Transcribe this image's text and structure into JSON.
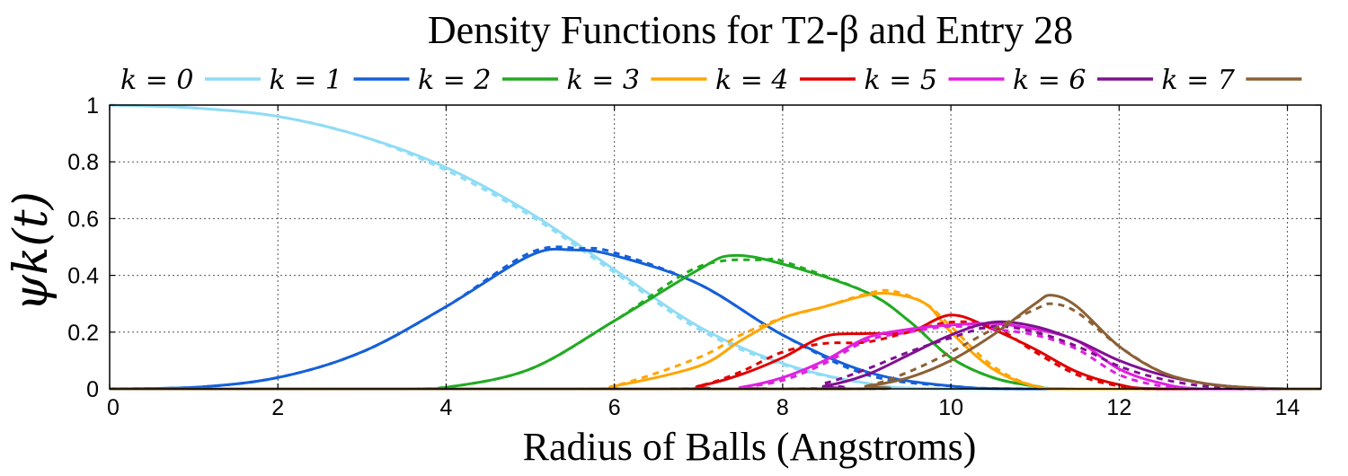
{
  "chart_data": {
    "type": "line",
    "title": "Density Functions for T2-β and Entry 28",
    "xlabel": "Radius of Balls (Angstroms)",
    "ylabel": "ψk(t)",
    "xlim": [
      0,
      14.4
    ],
    "ylim": [
      0,
      1
    ],
    "x_ticks": [
      0,
      2,
      4,
      6,
      8,
      10,
      12,
      14
    ],
    "y_ticks": [
      0,
      0.2,
      0.4,
      0.6,
      0.8,
      1
    ],
    "y_tick_labels": [
      "0",
      "0.2",
      "0.4",
      "0.6",
      "0.8",
      "1"
    ],
    "grid": true,
    "legend_position": "top",
    "line_styles": {
      "solid": "T2-β (solid)",
      "dashed": "Entry 28 (dashed)"
    },
    "series": [
      {
        "name": "k = 0",
        "color": "#8fdcf5",
        "solid": [
          [
            0,
            1
          ],
          [
            1,
            0.99
          ],
          [
            2,
            0.96
          ],
          [
            3,
            0.89
          ],
          [
            4,
            0.78
          ],
          [
            5,
            0.62
          ],
          [
            6,
            0.42
          ],
          [
            7,
            0.22
          ],
          [
            8,
            0.09
          ],
          [
            9,
            0.02
          ],
          [
            10,
            0
          ],
          [
            14.4,
            0
          ]
        ],
        "dashed": [
          [
            0,
            1
          ],
          [
            1,
            0.99
          ],
          [
            2,
            0.96
          ],
          [
            3,
            0.89
          ],
          [
            4,
            0.77
          ],
          [
            5,
            0.61
          ],
          [
            6,
            0.41
          ],
          [
            7,
            0.21
          ],
          [
            8,
            0.085
          ],
          [
            9,
            0.02
          ],
          [
            10,
            0
          ],
          [
            14.4,
            0
          ]
        ]
      },
      {
        "name": "k = 1",
        "color": "#1560d8",
        "solid": [
          [
            0,
            0
          ],
          [
            1,
            0.005
          ],
          [
            2,
            0.04
          ],
          [
            3,
            0.13
          ],
          [
            4,
            0.29
          ],
          [
            5,
            0.47
          ],
          [
            5.5,
            0.49
          ],
          [
            6,
            0.47
          ],
          [
            7,
            0.37
          ],
          [
            8,
            0.19
          ],
          [
            9,
            0.06
          ],
          [
            10,
            0.01
          ],
          [
            11,
            0
          ],
          [
            14.4,
            0
          ]
        ],
        "dashed": [
          [
            0,
            0
          ],
          [
            1,
            0.005
          ],
          [
            2,
            0.04
          ],
          [
            3,
            0.13
          ],
          [
            4,
            0.29
          ],
          [
            5,
            0.48
          ],
          [
            5.6,
            0.495
          ],
          [
            6,
            0.48
          ],
          [
            7,
            0.37
          ],
          [
            8,
            0.19
          ],
          [
            9,
            0.05
          ],
          [
            10,
            0.01
          ],
          [
            11,
            0
          ],
          [
            14.4,
            0
          ]
        ]
      },
      {
        "name": "k = 2",
        "color": "#22aa22",
        "solid": [
          [
            0,
            0
          ],
          [
            3.5,
            0
          ],
          [
            4,
            0.005
          ],
          [
            5,
            0.07
          ],
          [
            6,
            0.24
          ],
          [
            7,
            0.42
          ],
          [
            7.4,
            0.47
          ],
          [
            8,
            0.44
          ],
          [
            9,
            0.34
          ],
          [
            9.5,
            0.24
          ],
          [
            10,
            0.11
          ],
          [
            10.5,
            0.04
          ],
          [
            11,
            0.01
          ],
          [
            11.5,
            0
          ],
          [
            14.4,
            0
          ]
        ],
        "dashed": [
          [
            0,
            0
          ],
          [
            3.5,
            0
          ],
          [
            4,
            0.005
          ],
          [
            5,
            0.07
          ],
          [
            6,
            0.24
          ],
          [
            7,
            0.43
          ],
          [
            7.8,
            0.455
          ],
          [
            8,
            0.45
          ],
          [
            9,
            0.34
          ],
          [
            9.5,
            0.24
          ],
          [
            10,
            0.11
          ],
          [
            10.5,
            0.04
          ],
          [
            11,
            0.01
          ],
          [
            11.5,
            0
          ],
          [
            14.4,
            0
          ]
        ]
      },
      {
        "name": "k = 3",
        "color": "#ffa500",
        "solid": [
          [
            0,
            0
          ],
          [
            5.5,
            0
          ],
          [
            6,
            0.01
          ],
          [
            7,
            0.08
          ],
          [
            7.5,
            0.17
          ],
          [
            8,
            0.25
          ],
          [
            8.5,
            0.29
          ],
          [
            9,
            0.33
          ],
          [
            9.3,
            0.335
          ],
          [
            9.7,
            0.3
          ],
          [
            10,
            0.2
          ],
          [
            10.5,
            0.07
          ],
          [
            11,
            0.01
          ],
          [
            11.5,
            0
          ],
          [
            14.4,
            0
          ]
        ],
        "dashed": [
          [
            0,
            0
          ],
          [
            5.5,
            0
          ],
          [
            6,
            0.01
          ],
          [
            7,
            0.11
          ],
          [
            7.5,
            0.19
          ],
          [
            8,
            0.25
          ],
          [
            8.5,
            0.29
          ],
          [
            9,
            0.335
          ],
          [
            9.3,
            0.345
          ],
          [
            9.7,
            0.3
          ],
          [
            10,
            0.22
          ],
          [
            10.5,
            0.08
          ],
          [
            11,
            0.01
          ],
          [
            11.5,
            0
          ],
          [
            14.4,
            0
          ]
        ]
      },
      {
        "name": "k = 4",
        "color": "#e00000",
        "solid": [
          [
            0,
            0
          ],
          [
            6.5,
            0
          ],
          [
            7,
            0.01
          ],
          [
            7.5,
            0.05
          ],
          [
            8,
            0.11
          ],
          [
            8.5,
            0.185
          ],
          [
            9,
            0.195
          ],
          [
            9.5,
            0.2
          ],
          [
            10,
            0.26
          ],
          [
            10.5,
            0.21
          ],
          [
            11,
            0.14
          ],
          [
            11.5,
            0.06
          ],
          [
            12,
            0.015
          ],
          [
            12.5,
            0
          ],
          [
            14.4,
            0
          ]
        ],
        "dashed": [
          [
            0,
            0
          ],
          [
            6.5,
            0
          ],
          [
            7,
            0.01
          ],
          [
            7.5,
            0.06
          ],
          [
            8,
            0.13
          ],
          [
            8.5,
            0.16
          ],
          [
            9,
            0.165
          ],
          [
            9.5,
            0.2
          ],
          [
            10,
            0.235
          ],
          [
            10.5,
            0.22
          ],
          [
            11,
            0.13
          ],
          [
            11.5,
            0.05
          ],
          [
            12,
            0.01
          ],
          [
            12.5,
            0
          ],
          [
            14.4,
            0
          ]
        ]
      },
      {
        "name": "k = 5",
        "color": "#e020e0",
        "solid": [
          [
            0,
            0
          ],
          [
            7.2,
            0
          ],
          [
            7.5,
            0.005
          ],
          [
            8,
            0.04
          ],
          [
            8.5,
            0.1
          ],
          [
            9,
            0.18
          ],
          [
            9.5,
            0.21
          ],
          [
            10,
            0.225
          ],
          [
            10.5,
            0.23
          ],
          [
            11,
            0.21
          ],
          [
            11.5,
            0.17
          ],
          [
            12,
            0.07
          ],
          [
            12.5,
            0.02
          ],
          [
            13,
            0
          ],
          [
            14.4,
            0
          ]
        ],
        "dashed": [
          [
            0,
            0
          ],
          [
            7.2,
            0
          ],
          [
            7.5,
            0.005
          ],
          [
            8,
            0.03
          ],
          [
            8.5,
            0.09
          ],
          [
            9,
            0.17
          ],
          [
            9.5,
            0.2
          ],
          [
            10,
            0.22
          ],
          [
            10.5,
            0.21
          ],
          [
            11,
            0.19
          ],
          [
            11.5,
            0.14
          ],
          [
            12,
            0.05
          ],
          [
            12.5,
            0.01
          ],
          [
            13,
            0
          ],
          [
            14.4,
            0
          ]
        ]
      },
      {
        "name": "k = 6",
        "color": "#801090",
        "solid": [
          [
            0,
            0
          ],
          [
            8,
            0
          ],
          [
            8.5,
            0.01
          ],
          [
            9,
            0.05
          ],
          [
            9.5,
            0.12
          ],
          [
            10,
            0.19
          ],
          [
            10.5,
            0.235
          ],
          [
            11,
            0.22
          ],
          [
            11.5,
            0.17
          ],
          [
            12,
            0.1
          ],
          [
            12.5,
            0.05
          ],
          [
            13,
            0.02
          ],
          [
            13.5,
            0.005
          ],
          [
            14,
            0
          ],
          [
            14.4,
            0
          ]
        ],
        "dashed": [
          [
            0,
            0
          ],
          [
            8,
            0
          ],
          [
            8.5,
            0.02
          ],
          [
            9,
            0.07
          ],
          [
            9.5,
            0.13
          ],
          [
            10,
            0.18
          ],
          [
            10.5,
            0.22
          ],
          [
            11,
            0.2
          ],
          [
            11.5,
            0.15
          ],
          [
            12,
            0.08
          ],
          [
            12.5,
            0.035
          ],
          [
            13,
            0.01
          ],
          [
            13.5,
            0
          ],
          [
            14.4,
            0
          ]
        ]
      },
      {
        "name": "k = 7",
        "color": "#8b6035",
        "solid": [
          [
            0,
            0
          ],
          [
            8.5,
            0
          ],
          [
            9,
            0.01
          ],
          [
            9.5,
            0.04
          ],
          [
            10,
            0.1
          ],
          [
            10.5,
            0.19
          ],
          [
            11,
            0.3
          ],
          [
            11.2,
            0.33
          ],
          [
            11.5,
            0.29
          ],
          [
            12,
            0.15
          ],
          [
            12.5,
            0.06
          ],
          [
            13,
            0.02
          ],
          [
            13.5,
            0.005
          ],
          [
            14,
            0
          ],
          [
            14.4,
            0
          ]
        ],
        "dashed": [
          [
            0,
            0
          ],
          [
            8.5,
            0
          ],
          [
            9,
            0.01
          ],
          [
            9.5,
            0.06
          ],
          [
            10,
            0.13
          ],
          [
            10.5,
            0.21
          ],
          [
            11,
            0.28
          ],
          [
            11.2,
            0.3
          ],
          [
            11.5,
            0.27
          ],
          [
            12,
            0.15
          ],
          [
            12.5,
            0.06
          ],
          [
            13,
            0.02
          ],
          [
            13.5,
            0.005
          ],
          [
            14,
            0
          ],
          [
            14.4,
            0
          ]
        ]
      }
    ]
  }
}
